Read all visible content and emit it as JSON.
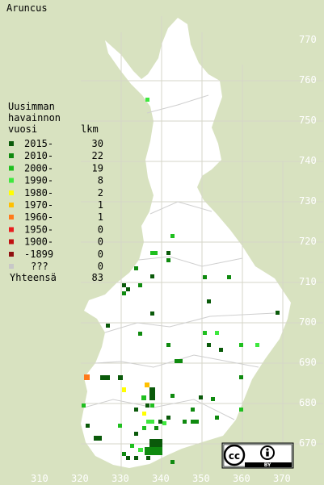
{
  "title": "Aruncus",
  "legend": {
    "heading_lines": [
      "Uusimman",
      "havainnon",
      "vuosi"
    ],
    "count_header": "lkm",
    "items": [
      {
        "label": "2015-",
        "count": "30",
        "color": "#0a5a0a"
      },
      {
        "label": "2010-",
        "count": "22",
        "color": "#0f8a0f"
      },
      {
        "label": "2000-",
        "count": "19",
        "color": "#1fbf1f"
      },
      {
        "label": "1990-",
        "count": "8",
        "color": "#3ee83e"
      },
      {
        "label": "1980-",
        "count": "2",
        "color": "#ffff00"
      },
      {
        "label": "1970-",
        "count": "1",
        "color": "#ffc000"
      },
      {
        "label": "1960-",
        "count": "1",
        "color": "#ff7a1a"
      },
      {
        "label": "1950-",
        "count": "0",
        "color": "#e81e1e"
      },
      {
        "label": "1900-",
        "count": "0",
        "color": "#c01010"
      },
      {
        "label": "-1899",
        "count": "0",
        "color": "#901010"
      },
      {
        "label": "???",
        "count": "0",
        "color": "#c8c8c8"
      }
    ],
    "total_label": "Yhteensä",
    "total_count": "83"
  },
  "axis": {
    "x_labels": [
      "310",
      "320",
      "330",
      "340",
      "350",
      "360",
      "370"
    ],
    "y_labels": [
      "770",
      "760",
      "750",
      "740",
      "730",
      "720",
      "710",
      "700",
      "690",
      "680",
      "670"
    ]
  },
  "license_badge": {
    "icon": "cc-by-icon",
    "text": "BY"
  },
  "colors": {
    "background": "#d8e2c0",
    "land": "#ffffff",
    "grid": "#c8d0b0"
  }
}
